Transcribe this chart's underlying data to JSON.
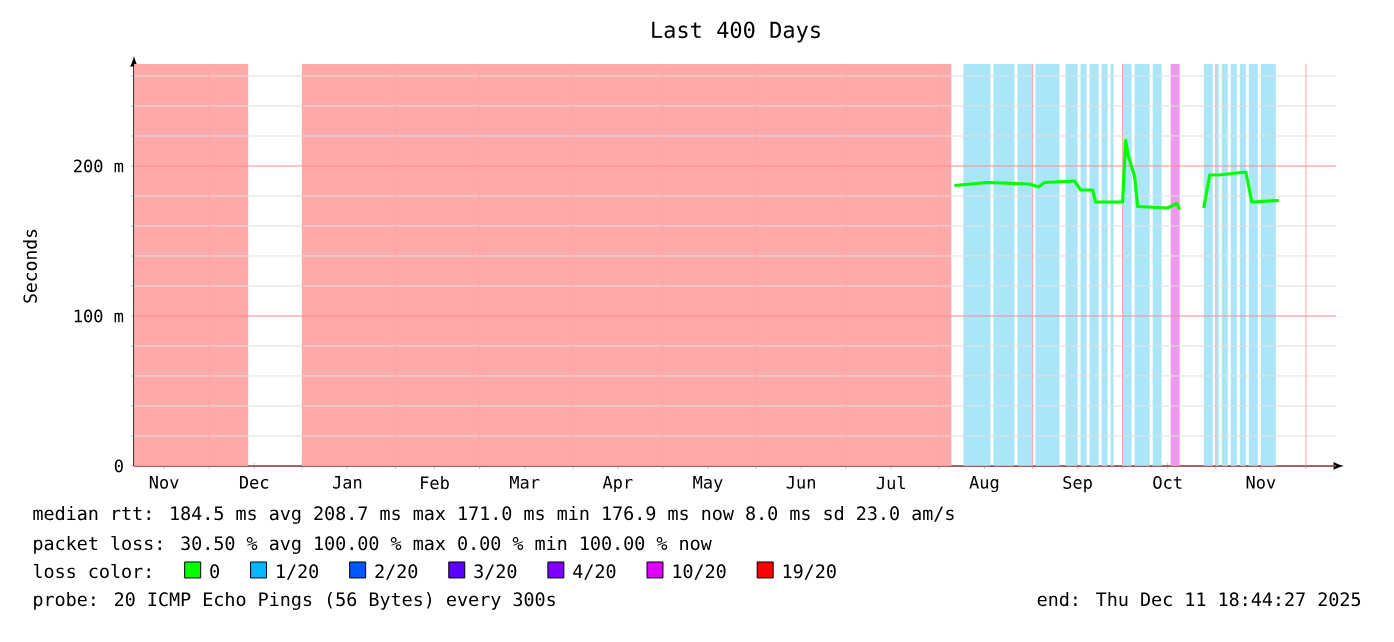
{
  "chart_data": {
    "type": "line",
    "title": "Last 400 Days",
    "ylabel": "Seconds",
    "legend_title": "loss color:",
    "legend": "bottom",
    "grid": true,
    "xlim": [
      "2024-11-06",
      "2025-12-11"
    ],
    "ylim": [
      0,
      268
    ],
    "xticks": [
      {
        "value": "2024-11-16",
        "label": "Nov"
      },
      {
        "value": "2024-12-01",
        "label": null
      },
      {
        "value": "2024-12-16",
        "label": "Dec"
      },
      {
        "value": "2025-01-01",
        "label": null
      },
      {
        "value": "2025-01-16",
        "label": "Jan"
      },
      {
        "value": "2025-02-01",
        "label": null
      },
      {
        "value": "2025-02-14",
        "label": "Feb"
      },
      {
        "value": "2025-03-01",
        "label": null
      },
      {
        "value": "2025-03-16",
        "label": "Mar"
      },
      {
        "value": "2025-04-01",
        "label": null
      },
      {
        "value": "2025-04-16",
        "label": "Apr"
      },
      {
        "value": "2025-05-01",
        "label": null
      },
      {
        "value": "2025-05-16",
        "label": "May"
      },
      {
        "value": "2025-06-01",
        "label": null
      },
      {
        "value": "2025-06-16",
        "label": "Jun"
      },
      {
        "value": "2025-07-01",
        "label": null
      },
      {
        "value": "2025-07-16",
        "label": "Jul"
      },
      {
        "value": "2025-08-01",
        "label": null
      },
      {
        "value": "2025-08-16",
        "label": "Aug"
      },
      {
        "value": "2025-09-01",
        "label": null
      },
      {
        "value": "2025-09-16",
        "label": "Sep"
      },
      {
        "value": "2025-10-01",
        "label": null
      },
      {
        "value": "2025-10-16",
        "label": "Oct"
      },
      {
        "value": "2025-11-01",
        "label": null
      },
      {
        "value": "2025-11-16",
        "label": "Nov"
      },
      {
        "value": "2025-12-01",
        "label": null
      }
    ],
    "yticks": [
      {
        "value": 0,
        "label": "0"
      },
      {
        "value": 20,
        "label": null
      },
      {
        "value": 40,
        "label": null
      },
      {
        "value": 60,
        "label": null
      },
      {
        "value": 80,
        "label": null
      },
      {
        "value": 100,
        "label": "100 m"
      },
      {
        "value": 120,
        "label": null
      },
      {
        "value": 140,
        "label": null
      },
      {
        "value": 160,
        "label": null
      },
      {
        "value": 180,
        "label": null
      },
      {
        "value": 200,
        "label": "200 m"
      },
      {
        "value": 220,
        "label": null
      },
      {
        "value": 240,
        "label": null
      },
      {
        "value": 260,
        "label": null
      }
    ],
    "x": [
      "2025-08-06",
      "2025-08-17",
      "2025-08-31",
      "2025-09-03",
      "2025-09-05",
      "2025-09-15",
      "2025-09-17",
      "2025-09-21",
      "2025-09-22",
      "2025-10-01",
      "2025-10-02",
      "2025-10-03",
      "2025-10-05",
      "2025-10-06",
      "2025-10-16",
      "2025-10-19",
      "2025-10-20",
      "2025-10-24",
      "2025-10-28",
      "2025-10-30",
      "2025-11-02",
      "2025-11-11",
      "2025-11-13",
      "2025-11-22"
    ],
    "series": [
      {
        "name": "0",
        "color": "#00ff00",
        "values": [
          187,
          189,
          188,
          186,
          189,
          190,
          184,
          184,
          176,
          176,
          217,
          206,
          193,
          173,
          172,
          175,
          171,
          null,
          172,
          194,
          194,
          196,
          176,
          177
        ]
      },
      {
        "name": "1/20",
        "color": "#00b8ff",
        "values": [
          null,
          null,
          null,
          null,
          null,
          null,
          null,
          null,
          null,
          null,
          null,
          null,
          null,
          null,
          null,
          null,
          null,
          null,
          null,
          null,
          null,
          null,
          null,
          null
        ]
      },
      {
        "name": "2/20",
        "color": "#0059ff",
        "values": [
          null,
          null,
          null,
          null,
          null,
          null,
          null,
          null,
          null,
          null,
          null,
          null,
          null,
          null,
          null,
          null,
          null,
          null,
          null,
          null,
          null,
          null,
          null,
          null
        ]
      },
      {
        "name": "3/20",
        "color": "#5e00ff",
        "values": [
          null,
          null,
          null,
          null,
          null,
          null,
          null,
          null,
          null,
          null,
          null,
          null,
          null,
          null,
          null,
          null,
          null,
          null,
          null,
          null,
          null,
          null,
          null,
          null
        ]
      },
      {
        "name": "4/20",
        "color": "#7e00ff",
        "values": [
          null,
          null,
          null,
          null,
          null,
          null,
          null,
          null,
          null,
          null,
          null,
          null,
          null,
          null,
          null,
          null,
          null,
          null,
          null,
          null,
          null,
          null,
          null,
          null
        ]
      },
      {
        "name": "10/20",
        "color": "#dd00ff",
        "values": [
          null,
          null,
          null,
          null,
          null,
          null,
          null,
          null,
          null,
          null,
          null,
          null,
          null,
          null,
          null,
          null,
          null,
          null,
          null,
          null,
          null,
          null,
          null,
          null
        ]
      },
      {
        "name": "19/20",
        "color": "#ff0000",
        "values": [
          null,
          null,
          null,
          null,
          null,
          null,
          null,
          null,
          null,
          null,
          null,
          null,
          null,
          null,
          null,
          null,
          null,
          null,
          null,
          null,
          null,
          null,
          null,
          null
        ]
      }
    ],
    "bands": [
      {
        "axis": "x",
        "from": "2024-11-06",
        "to": "2024-12-14",
        "color": "#ffaaaa"
      },
      {
        "axis": "x",
        "from": "2025-01-01",
        "to": "2025-08-05",
        "color": "#ffaaaa"
      },
      {
        "axis": "x",
        "from": "2025-08-09",
        "to": "2025-08-18",
        "color": "#aae6f8"
      },
      {
        "axis": "x",
        "from": "2025-08-19",
        "to": "2025-08-26",
        "color": "#aae6f8"
      },
      {
        "axis": "x",
        "from": "2025-08-27",
        "to": "2025-09-01",
        "color": "#aae6f8"
      },
      {
        "axis": "x",
        "from": "2025-09-02",
        "to": "2025-09-10",
        "color": "#aae6f8"
      },
      {
        "axis": "x",
        "from": "2025-09-12",
        "to": "2025-09-16",
        "color": "#aae6f8"
      },
      {
        "axis": "x",
        "from": "2025-09-17",
        "to": "2025-09-19",
        "color": "#aae6f8"
      },
      {
        "axis": "x",
        "from": "2025-09-20",
        "to": "2025-09-23",
        "color": "#aae6f8"
      },
      {
        "axis": "x",
        "from": "2025-09-24",
        "to": "2025-09-26",
        "color": "#aae6f8"
      },
      {
        "axis": "x",
        "from": "2025-09-27",
        "to": "2025-09-28",
        "color": "#aae6f8"
      },
      {
        "axis": "x",
        "from": "2025-10-01",
        "to": "2025-10-04",
        "color": "#aae6f8"
      },
      {
        "axis": "x",
        "from": "2025-10-05",
        "to": "2025-10-10",
        "color": "#aae6f8"
      },
      {
        "axis": "x",
        "from": "2025-10-11",
        "to": "2025-10-14",
        "color": "#aae6f8"
      },
      {
        "axis": "x",
        "from": "2025-10-17",
        "to": "2025-10-20",
        "color": "#ee99ee"
      },
      {
        "axis": "x",
        "from": "2025-10-28",
        "to": "2025-10-31",
        "color": "#aae6f8"
      },
      {
        "axis": "x",
        "from": "2025-11-01",
        "to": "2025-11-02",
        "color": "#aae6f8"
      },
      {
        "axis": "x",
        "from": "2025-11-03",
        "to": "2025-11-05",
        "color": "#aae6f8"
      },
      {
        "axis": "x",
        "from": "2025-11-06",
        "to": "2025-11-08",
        "color": "#aae6f8"
      },
      {
        "axis": "x",
        "from": "2025-11-09",
        "to": "2025-11-11",
        "color": "#aae6f8"
      },
      {
        "axis": "x",
        "from": "2025-11-12",
        "to": "2025-11-15",
        "color": "#aae6f8"
      },
      {
        "axis": "x",
        "from": "2025-11-16",
        "to": "2025-11-21",
        "color": "#aae6f8"
      }
    ],
    "annotations": [
      "median rtt:  184.5 ms avg  208.7 ms max  171.0 ms min  176.9 ms now  8.0 ms sd  23.0   am/s",
      "packet loss: 30.50 % avg  100.00 % max  0.00 % min  100.00 % now",
      "probe:       20 ICMP Echo Pings (56 Bytes) every 300s",
      "end: Thu Dec 11 18:44:27 2025"
    ]
  }
}
